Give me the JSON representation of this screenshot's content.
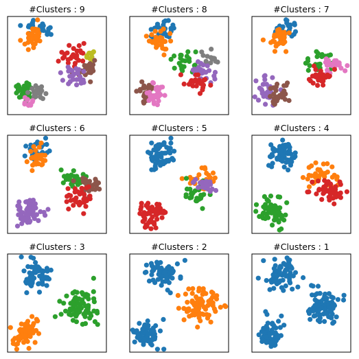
{
  "palette": {
    "blue": "#1f77b4",
    "orange": "#ff7f0e",
    "green": "#2ca02c",
    "red": "#d62728",
    "purple": "#9467bd",
    "brown": "#8c564b",
    "pink": "#e377c2",
    "gray": "#7f7f7f",
    "olive": "#bcbd22"
  },
  "chart_data": [
    {
      "type": "scatter",
      "title": "#Clusters : 9",
      "axes_visible": false,
      "groups": [
        {
          "color": "blue",
          "center": [
            0.32,
            0.13
          ],
          "spread": [
            0.1,
            0.07
          ],
          "n": 28,
          "seed": 11
        },
        {
          "color": "orange",
          "center": [
            0.27,
            0.22
          ],
          "spread": [
            0.07,
            0.08
          ],
          "n": 30,
          "seed": 12
        },
        {
          "color": "red",
          "center": [
            0.67,
            0.4
          ],
          "spread": [
            0.09,
            0.07
          ],
          "n": 28,
          "seed": 13
        },
        {
          "color": "olive",
          "center": [
            0.85,
            0.4
          ],
          "spread": [
            0.04,
            0.04
          ],
          "n": 10,
          "seed": 14
        },
        {
          "color": "brown",
          "center": [
            0.82,
            0.55
          ],
          "spread": [
            0.07,
            0.06
          ],
          "n": 22,
          "seed": 15
        },
        {
          "color": "purple",
          "center": [
            0.68,
            0.6
          ],
          "spread": [
            0.09,
            0.07
          ],
          "n": 26,
          "seed": 16
        },
        {
          "color": "green",
          "center": [
            0.17,
            0.75
          ],
          "spread": [
            0.06,
            0.06
          ],
          "n": 30,
          "seed": 17
        },
        {
          "color": "gray",
          "center": [
            0.29,
            0.76
          ],
          "spread": [
            0.05,
            0.06
          ],
          "n": 26,
          "seed": 18
        },
        {
          "color": "pink",
          "center": [
            0.2,
            0.88
          ],
          "spread": [
            0.04,
            0.03
          ],
          "n": 10,
          "seed": 19
        }
      ]
    },
    {
      "type": "scatter",
      "title": "#Clusters : 8",
      "axes_visible": false,
      "groups": [
        {
          "color": "blue",
          "center": [
            0.34,
            0.13
          ],
          "spread": [
            0.1,
            0.07
          ],
          "n": 28,
          "seed": 21
        },
        {
          "color": "orange",
          "center": [
            0.28,
            0.24
          ],
          "spread": [
            0.08,
            0.08
          ],
          "n": 32,
          "seed": 22
        },
        {
          "color": "green",
          "center": [
            0.58,
            0.45
          ],
          "spread": [
            0.08,
            0.07
          ],
          "n": 24,
          "seed": 23
        },
        {
          "color": "gray",
          "center": [
            0.8,
            0.42
          ],
          "spread": [
            0.06,
            0.05
          ],
          "n": 14,
          "seed": 24
        },
        {
          "color": "purple",
          "center": [
            0.75,
            0.55
          ],
          "spread": [
            0.08,
            0.06
          ],
          "n": 26,
          "seed": 25
        },
        {
          "color": "red",
          "center": [
            0.7,
            0.7
          ],
          "spread": [
            0.1,
            0.07
          ],
          "n": 24,
          "seed": 26
        },
        {
          "color": "brown",
          "center": [
            0.15,
            0.78
          ],
          "spread": [
            0.07,
            0.09
          ],
          "n": 30,
          "seed": 27
        },
        {
          "color": "pink",
          "center": [
            0.28,
            0.8
          ],
          "spread": [
            0.06,
            0.08
          ],
          "n": 28,
          "seed": 28
        }
      ]
    },
    {
      "type": "scatter",
      "title": "#Clusters : 7",
      "axes_visible": false,
      "groups": [
        {
          "color": "blue",
          "center": [
            0.32,
            0.13
          ],
          "spread": [
            0.1,
            0.07
          ],
          "n": 28,
          "seed": 31
        },
        {
          "color": "orange",
          "center": [
            0.28,
            0.24
          ],
          "spread": [
            0.08,
            0.08
          ],
          "n": 32,
          "seed": 32
        },
        {
          "color": "green",
          "center": [
            0.67,
            0.45
          ],
          "spread": [
            0.09,
            0.07
          ],
          "n": 24,
          "seed": 33
        },
        {
          "color": "pink",
          "center": [
            0.82,
            0.5
          ],
          "spread": [
            0.08,
            0.06
          ],
          "n": 26,
          "seed": 34
        },
        {
          "color": "red",
          "center": [
            0.7,
            0.62
          ],
          "spread": [
            0.09,
            0.07
          ],
          "n": 30,
          "seed": 35
        },
        {
          "color": "purple",
          "center": [
            0.15,
            0.76
          ],
          "spread": [
            0.07,
            0.1
          ],
          "n": 32,
          "seed": 36
        },
        {
          "color": "brown",
          "center": [
            0.28,
            0.78
          ],
          "spread": [
            0.06,
            0.08
          ],
          "n": 30,
          "seed": 37
        }
      ]
    },
    {
      "type": "scatter",
      "title": "#Clusters : 6",
      "axes_visible": false,
      "groups": [
        {
          "color": "blue",
          "center": [
            0.3,
            0.15
          ],
          "spread": [
            0.1,
            0.07
          ],
          "n": 28,
          "seed": 41
        },
        {
          "color": "orange",
          "center": [
            0.28,
            0.24
          ],
          "spread": [
            0.07,
            0.08
          ],
          "n": 30,
          "seed": 42
        },
        {
          "color": "green",
          "center": [
            0.65,
            0.45
          ],
          "spread": [
            0.09,
            0.07
          ],
          "n": 26,
          "seed": 43
        },
        {
          "color": "brown",
          "center": [
            0.82,
            0.5
          ],
          "spread": [
            0.08,
            0.07
          ],
          "n": 28,
          "seed": 44
        },
        {
          "color": "red",
          "center": [
            0.7,
            0.64
          ],
          "spread": [
            0.1,
            0.08
          ],
          "n": 34,
          "seed": 45
        },
        {
          "color": "purple",
          "center": [
            0.21,
            0.79
          ],
          "spread": [
            0.09,
            0.09
          ],
          "n": 62,
          "seed": 46
        }
      ]
    },
    {
      "type": "scatter",
      "title": "#Clusters : 5",
      "axes_visible": false,
      "groups": [
        {
          "color": "blue",
          "center": [
            0.3,
            0.2
          ],
          "spread": [
            0.1,
            0.11
          ],
          "n": 62,
          "seed": 51
        },
        {
          "color": "orange",
          "center": [
            0.72,
            0.45
          ],
          "spread": [
            0.1,
            0.08
          ],
          "n": 28,
          "seed": 52
        },
        {
          "color": "green",
          "center": [
            0.68,
            0.6
          ],
          "spread": [
            0.11,
            0.09
          ],
          "n": 32,
          "seed": 53
        },
        {
          "color": "purple",
          "center": [
            0.76,
            0.52
          ],
          "spread": [
            0.07,
            0.05
          ],
          "n": 24,
          "seed": 54
        },
        {
          "color": "red",
          "center": [
            0.22,
            0.79
          ],
          "spread": [
            0.09,
            0.09
          ],
          "n": 62,
          "seed": 55
        }
      ]
    },
    {
      "type": "scatter",
      "title": "#Clusters : 4",
      "axes_visible": false,
      "groups": [
        {
          "color": "blue",
          "center": [
            0.3,
            0.2
          ],
          "spread": [
            0.1,
            0.11
          ],
          "n": 62,
          "seed": 61
        },
        {
          "color": "orange",
          "center": [
            0.7,
            0.42
          ],
          "spread": [
            0.1,
            0.08
          ],
          "n": 34,
          "seed": 62
        },
        {
          "color": "red",
          "center": [
            0.75,
            0.57
          ],
          "spread": [
            0.12,
            0.08
          ],
          "n": 46,
          "seed": 63
        },
        {
          "color": "green",
          "center": [
            0.21,
            0.78
          ],
          "spread": [
            0.09,
            0.1
          ],
          "n": 62,
          "seed": 64
        }
      ]
    },
    {
      "type": "scatter",
      "title": "#Clusters : 3",
      "axes_visible": false,
      "groups": [
        {
          "color": "blue",
          "center": [
            0.3,
            0.2
          ],
          "spread": [
            0.1,
            0.11
          ],
          "n": 62,
          "seed": 71
        },
        {
          "color": "green",
          "center": [
            0.73,
            0.52
          ],
          "spread": [
            0.13,
            0.11
          ],
          "n": 80,
          "seed": 72
        },
        {
          "color": "orange",
          "center": [
            0.2,
            0.81
          ],
          "spread": [
            0.09,
            0.09
          ],
          "n": 62,
          "seed": 73
        }
      ]
    },
    {
      "type": "scatter",
      "title": "#Clusters : 2",
      "axes_visible": false,
      "groups": [
        {
          "color": "blue",
          "center": [
            0.32,
            0.2
          ],
          "spread": [
            0.1,
            0.11
          ],
          "n": 62,
          "seed": 81
        },
        {
          "color": "orange",
          "center": [
            0.73,
            0.52
          ],
          "spread": [
            0.13,
            0.11
          ],
          "n": 80,
          "seed": 82
        },
        {
          "color": "blue",
          "center": [
            0.18,
            0.81
          ],
          "spread": [
            0.09,
            0.09
          ],
          "n": 62,
          "seed": 83
        }
      ]
    },
    {
      "type": "scatter",
      "title": "#Clusters : 1",
      "axes_visible": false,
      "groups": [
        {
          "color": "blue",
          "center": [
            0.3,
            0.2
          ],
          "spread": [
            0.1,
            0.11
          ],
          "n": 62,
          "seed": 91
        },
        {
          "color": "blue",
          "center": [
            0.73,
            0.52
          ],
          "spread": [
            0.13,
            0.11
          ],
          "n": 80,
          "seed": 92
        },
        {
          "color": "blue",
          "center": [
            0.2,
            0.81
          ],
          "spread": [
            0.09,
            0.09
          ],
          "n": 62,
          "seed": 93
        }
      ]
    }
  ]
}
